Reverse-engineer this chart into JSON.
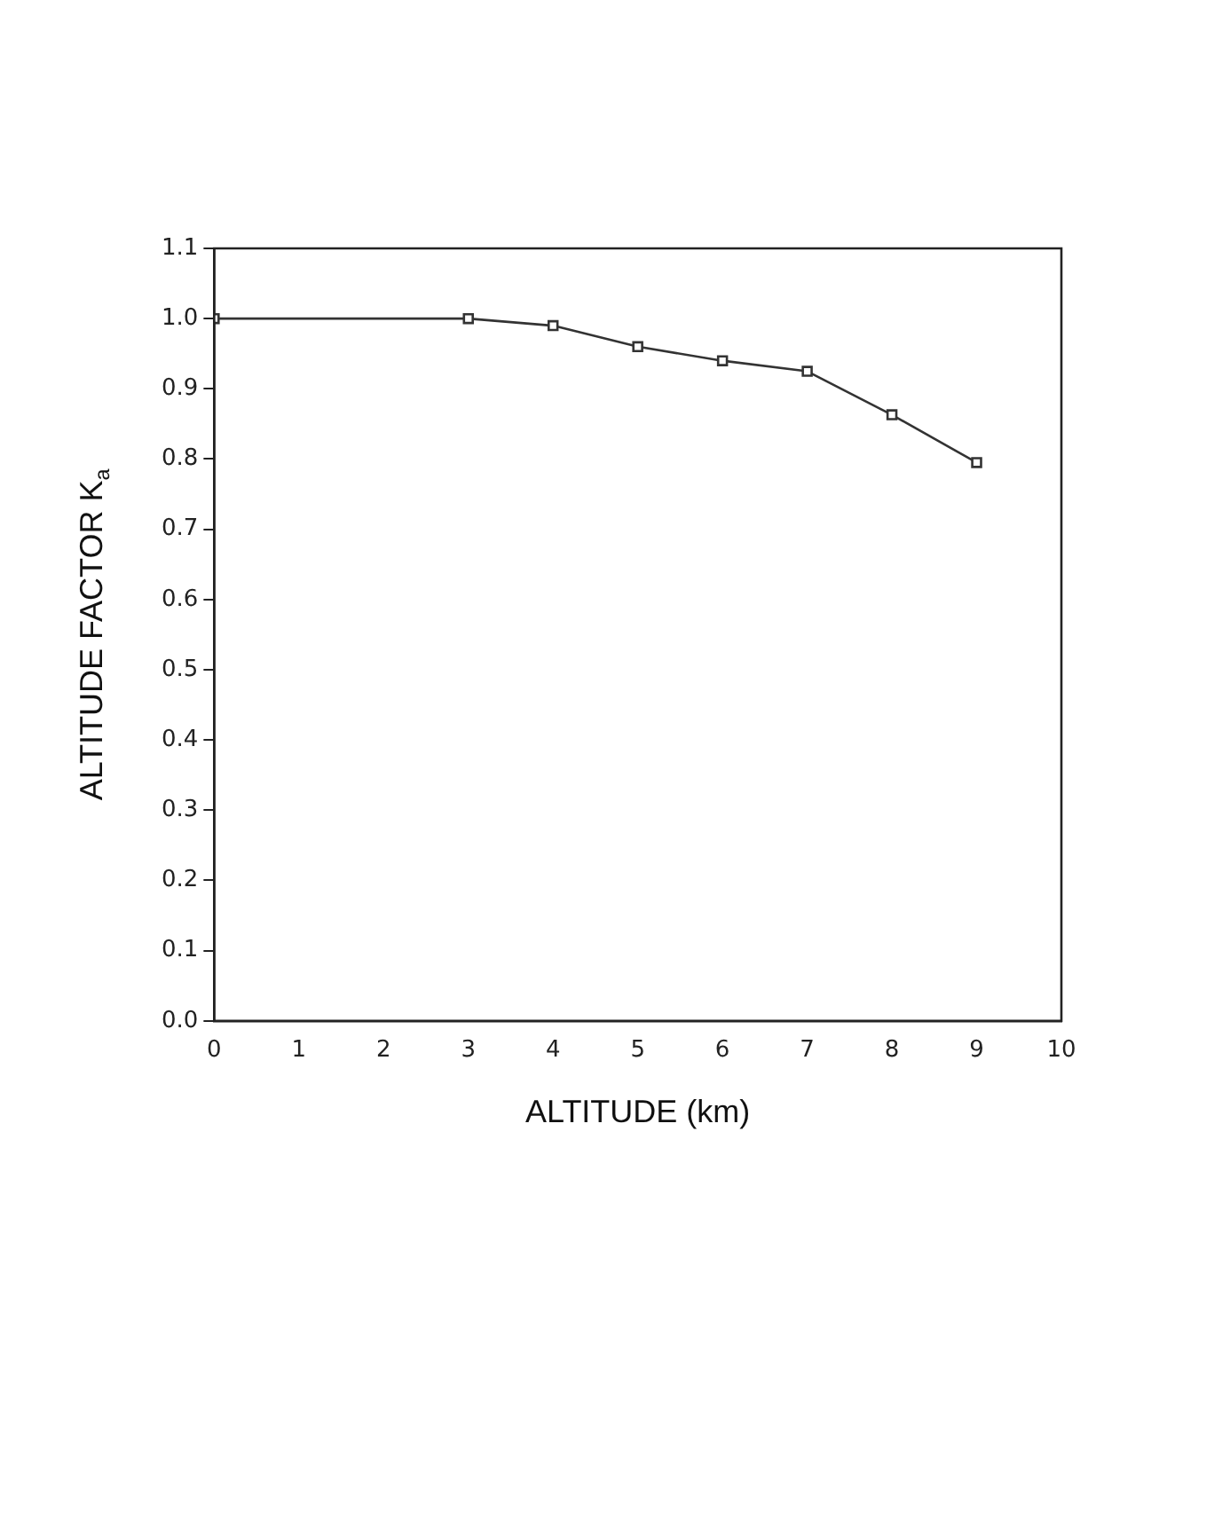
{
  "chart_data": {
    "type": "line",
    "xlabel": "ALTITUDE (km)",
    "ylabel": "ALTITUDE FACTOR K$_{a}$",
    "x": [
      0,
      3,
      4,
      5,
      6,
      7,
      8,
      9
    ],
    "series": [
      {
        "color": "#333333",
        "values": [
          1.0,
          1.0,
          0.99,
          0.96,
          0.94,
          0.925,
          0.863,
          0.795
        ]
      }
    ],
    "xlim": [
      0,
      10
    ],
    "xticks": [
      0,
      1,
      2,
      3,
      4,
      5,
      6,
      7,
      8,
      9,
      10
    ],
    "ylim": [
      0,
      1.1
    ],
    "yticks": [
      {
        "value": 0,
        "label": "0.0"
      },
      0.1,
      0.2,
      0.3,
      0.4,
      0.5,
      0.6,
      0.7,
      0.8,
      0.9,
      {
        "value": 1,
        "label": "1.0"
      },
      1.1
    ],
    "grid": false,
    "legend": false,
    "marker": "square",
    "line_style": "solid"
  }
}
